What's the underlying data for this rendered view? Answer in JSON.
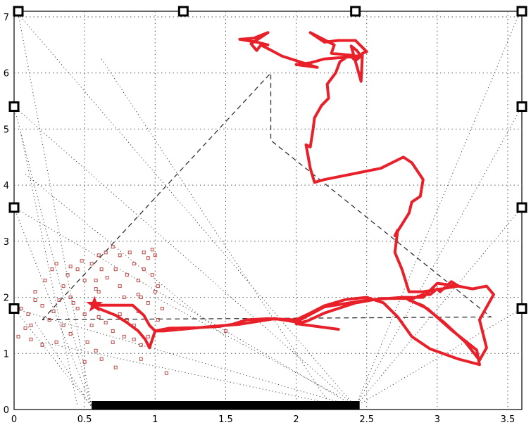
{
  "chart_data": {
    "type": "line",
    "xlim": [
      0,
      3.6
    ],
    "ylim": [
      0,
      7.1
    ],
    "grid": true,
    "x_ticks": [
      {
        "value": 0,
        "label": "0"
      },
      {
        "value": 0.5,
        "label": "0.5"
      },
      {
        "value": 1,
        "label": "1"
      },
      {
        "value": 1.5,
        "label": "1.5"
      },
      {
        "value": 2,
        "label": "2"
      },
      {
        "value": 2.5,
        "label": "2.5"
      },
      {
        "value": 3,
        "label": "3"
      },
      {
        "value": 3.5,
        "label": "3.5"
      }
    ],
    "y_ticks": [
      {
        "value": 0,
        "label": "0"
      },
      {
        "value": 1,
        "label": "1"
      },
      {
        "value": 2,
        "label": "2"
      },
      {
        "value": 3,
        "label": "3"
      },
      {
        "value": 4,
        "label": "4"
      },
      {
        "value": 5,
        "label": "5"
      },
      {
        "value": 6,
        "label": "6"
      },
      {
        "value": 7,
        "label": "7"
      }
    ],
    "colors": {
      "trajectory": "#e8202a",
      "particles": "#c04848",
      "markers": "#000000",
      "grid": "#555555",
      "background": "#ffffff"
    },
    "trajectory": [
      [
        2.3,
        1.43
      ],
      [
        2.0,
        1.53
      ],
      [
        2.08,
        1.58
      ],
      [
        2.2,
        1.72
      ],
      [
        2.42,
        1.9
      ],
      [
        2.6,
        1.98
      ],
      [
        2.78,
        1.98
      ],
      [
        2.93,
        1.8
      ],
      [
        3.1,
        1.42
      ],
      [
        3.28,
        1.06
      ],
      [
        3.3,
        0.8
      ],
      [
        3.15,
        0.9
      ],
      [
        2.95,
        1.08
      ],
      [
        2.82,
        1.3
      ],
      [
        2.72,
        1.65
      ],
      [
        2.62,
        1.9
      ],
      [
        2.5,
        2.0
      ],
      [
        2.35,
        1.96
      ],
      [
        2.2,
        1.85
      ],
      [
        2.1,
        1.72
      ],
      [
        2.0,
        1.6
      ],
      [
        1.8,
        1.62
      ],
      [
        1.65,
        1.6
      ],
      [
        1.55,
        1.52
      ],
      [
        1.45,
        1.48
      ],
      [
        1.3,
        1.46
      ],
      [
        1.1,
        1.45
      ],
      [
        1.0,
        1.4
      ],
      [
        0.96,
        1.1
      ],
      [
        0.93,
        1.25
      ],
      [
        0.88,
        1.4
      ],
      [
        0.8,
        1.55
      ],
      [
        0.72,
        1.68
      ],
      [
        0.6,
        1.8
      ],
      [
        0.56,
        1.86
      ],
      [
        0.7,
        1.86
      ],
      [
        0.84,
        1.86
      ],
      [
        0.92,
        1.68
      ],
      [
        0.96,
        1.5
      ],
      [
        1.0,
        1.4
      ],
      [
        1.06,
        1.4
      ],
      [
        1.4,
        1.48
      ],
      [
        1.6,
        1.52
      ],
      [
        1.85,
        1.62
      ],
      [
        2.0,
        1.56
      ],
      [
        2.2,
        1.83
      ],
      [
        2.5,
        1.95
      ],
      [
        2.75,
        2.0
      ],
      [
        2.9,
        2.0
      ],
      [
        3.0,
        2.25
      ],
      [
        3.15,
        2.2
      ],
      [
        3.25,
        2.15
      ],
      [
        3.35,
        2.2
      ],
      [
        3.4,
        2.05
      ],
      [
        3.3,
        1.6
      ],
      [
        3.35,
        1.1
      ],
      [
        3.3,
        0.88
      ],
      [
        3.2,
        1.2
      ],
      [
        3.05,
        1.55
      ],
      [
        2.9,
        1.85
      ],
      [
        2.8,
        1.95
      ],
      [
        2.9,
        2.05
      ],
      [
        2.95,
        2.05
      ],
      [
        3.0,
        2.15
      ],
      [
        3.02,
        2.1
      ],
      [
        3.1,
        2.28
      ],
      [
        3.15,
        2.2
      ],
      [
        2.9,
        2.1
      ],
      [
        2.8,
        2.1
      ],
      [
        2.75,
        2.5
      ],
      [
        2.7,
        2.8
      ],
      [
        2.72,
        3.2
      ],
      [
        2.7,
        3.1
      ],
      [
        2.75,
        3.3
      ],
      [
        2.8,
        3.5
      ],
      [
        2.82,
        3.7
      ],
      [
        2.88,
        3.8
      ],
      [
        2.9,
        4.1
      ],
      [
        2.82,
        4.4
      ],
      [
        2.76,
        4.5
      ],
      [
        2.6,
        4.3
      ],
      [
        2.2,
        4.1
      ],
      [
        2.13,
        4.05
      ],
      [
        2.1,
        4.3
      ],
      [
        2.07,
        4.72
      ],
      [
        2.1,
        4.68
      ],
      [
        2.12,
        5.0
      ],
      [
        2.13,
        5.2
      ],
      [
        2.18,
        5.42
      ],
      [
        2.23,
        5.55
      ],
      [
        2.22,
        5.8
      ],
      [
        2.28,
        6.0
      ],
      [
        2.31,
        6.2
      ],
      [
        2.38,
        6.32
      ],
      [
        2.42,
        6.22
      ],
      [
        2.46,
        6.3
      ],
      [
        2.43,
        6.4
      ],
      [
        2.39,
        6.48
      ],
      [
        2.46,
        5.85
      ],
      [
        2.47,
        6.35
      ],
      [
        2.5,
        6.38
      ],
      [
        2.42,
        6.58
      ],
      [
        2.3,
        6.58
      ],
      [
        2.2,
        6.55
      ],
      [
        2.1,
        6.72
      ],
      [
        2.27,
        6.5
      ],
      [
        2.25,
        6.35
      ],
      [
        2.45,
        6.3
      ],
      [
        2.2,
        6.25
      ],
      [
        2.1,
        6.18
      ],
      [
        2.0,
        6.15
      ],
      [
        2.15,
        6.1
      ],
      [
        1.9,
        6.3
      ],
      [
        1.75,
        6.5
      ],
      [
        1.72,
        6.4
      ],
      [
        1.68,
        6.52
      ],
      [
        1.8,
        6.72
      ],
      [
        1.7,
        6.62
      ],
      [
        1.6,
        6.6
      ],
      [
        1.72,
        6.55
      ],
      [
        1.8,
        6.5
      ]
    ],
    "start_marker": [
      0.57,
      1.87
    ],
    "dashed_path": [
      [
        0.2,
        1.6
      ],
      [
        1.82,
        6.0
      ],
      [
        1.82,
        4.8
      ],
      [
        3.38,
        1.65
      ],
      [
        0.2,
        1.6
      ]
    ],
    "particles": [
      [
        0.05,
        1.8
      ],
      [
        0.1,
        1.7
      ],
      [
        0.12,
        1.5
      ],
      [
        0.03,
        1.3
      ],
      [
        0.15,
        1.95
      ],
      [
        0.2,
        1.85
      ],
      [
        0.25,
        1.6
      ],
      [
        0.28,
        1.75
      ],
      [
        0.32,
        1.95
      ],
      [
        0.35,
        2.2
      ],
      [
        0.38,
        2.4
      ],
      [
        0.3,
        2.6
      ],
      [
        0.45,
        2.5
      ],
      [
        0.5,
        2.3
      ],
      [
        0.48,
        2.65
      ],
      [
        0.55,
        2.6
      ],
      [
        0.58,
        2.3
      ],
      [
        0.6,
        2.1
      ],
      [
        0.62,
        2.5
      ],
      [
        0.65,
        2.8
      ],
      [
        0.7,
        2.9
      ],
      [
        0.72,
        2.5
      ],
      [
        0.75,
        2.2
      ],
      [
        0.78,
        2.0
      ],
      [
        0.8,
        2.4
      ],
      [
        0.85,
        2.6
      ],
      [
        0.88,
        2.3
      ],
      [
        0.9,
        2.0
      ],
      [
        0.92,
        2.5
      ],
      [
        0.95,
        2.7
      ],
      [
        0.98,
        2.4
      ],
      [
        1.0,
        2.1
      ],
      [
        0.95,
        1.9
      ],
      [
        0.88,
        1.75
      ],
      [
        0.85,
        1.5
      ],
      [
        0.8,
        1.6
      ],
      [
        0.75,
        1.7
      ],
      [
        0.7,
        1.4
      ],
      [
        0.65,
        1.55
      ],
      [
        0.6,
        1.65
      ],
      [
        0.55,
        1.5
      ],
      [
        0.5,
        1.7
      ],
      [
        0.45,
        1.8
      ],
      [
        0.42,
        1.9
      ],
      [
        0.4,
        2.0
      ],
      [
        0.52,
        1.2
      ],
      [
        0.58,
        1.05
      ],
      [
        0.62,
        0.9
      ],
      [
        0.7,
        1.2
      ],
      [
        0.78,
        1.3
      ],
      [
        0.85,
        1.25
      ],
      [
        0.9,
        1.15
      ],
      [
        0.95,
        1.3
      ],
      [
        1.02,
        1.6
      ],
      [
        1.05,
        1.8
      ],
      [
        0.6,
        2.75
      ],
      [
        0.75,
        2.75
      ],
      [
        0.82,
        2.8
      ],
      [
        0.92,
        2.8
      ],
      [
        1.0,
        2.75
      ],
      [
        0.98,
        2.85
      ],
      [
        0.15,
        2.1
      ],
      [
        0.22,
        2.3
      ],
      [
        0.35,
        1.5
      ],
      [
        0.4,
        1.35
      ],
      [
        0.3,
        1.2
      ],
      [
        0.2,
        1.15
      ],
      [
        0.12,
        1.25
      ],
      [
        0.08,
        1.45
      ],
      [
        0.5,
        0.85
      ],
      [
        1.08,
        0.65
      ],
      [
        0.72,
        0.75
      ],
      [
        0.9,
        0.9
      ],
      [
        0.58,
        2.15
      ],
      [
        0.66,
        2.35
      ],
      [
        0.88,
        2.05
      ],
      [
        1.02,
        2.2
      ],
      [
        0.4,
        2.55
      ],
      [
        0.27,
        2.5
      ],
      [
        1.5,
        1.4
      ]
    ],
    "square_markers": [
      [
        0.03,
        7.1
      ],
      [
        1.2,
        7.1
      ],
      [
        2.42,
        7.1
      ],
      [
        3.6,
        7.1
      ],
      [
        0.0,
        5.4
      ],
      [
        3.6,
        5.4
      ],
      [
        0.0,
        3.6
      ],
      [
        3.6,
        3.6
      ],
      [
        0.0,
        1.8
      ],
      [
        3.6,
        1.8
      ]
    ],
    "bar_segment": [
      0.55,
      2.45
    ],
    "dotted_rays": [
      [
        [
          0.03,
          7.05
        ],
        [
          0.55,
          0.05
        ]
      ],
      [
        [
          0.03,
          7.05
        ],
        [
          2.42,
          0.05
        ]
      ],
      [
        [
          0.0,
          5.4
        ],
        [
          2.42,
          0.05
        ]
      ],
      [
        [
          0.0,
          5.4
        ],
        [
          0.55,
          0.05
        ]
      ],
      [
        [
          0.0,
          3.6
        ],
        [
          2.42,
          0.05
        ]
      ],
      [
        [
          0.0,
          3.6
        ],
        [
          0.55,
          0.05
        ]
      ],
      [
        [
          0.0,
          1.8
        ],
        [
          2.42,
          0.05
        ]
      ],
      [
        [
          0.0,
          1.8
        ],
        [
          0.55,
          0.05
        ]
      ],
      [
        [
          3.58,
          7.05
        ],
        [
          2.42,
          0.05
        ]
      ],
      [
        [
          3.6,
          5.4
        ],
        [
          2.42,
          0.05
        ]
      ],
      [
        [
          3.6,
          3.6
        ],
        [
          2.42,
          0.05
        ]
      ],
      [
        [
          3.6,
          1.8
        ],
        [
          2.42,
          0.05
        ]
      ],
      [
        [
          0.62,
          6.25
        ],
        [
          2.25,
          0.05
        ]
      ],
      [
        [
          0.15,
          1.55
        ],
        [
          0.55,
          0.05
        ]
      ],
      [
        [
          0.2,
          1.2
        ],
        [
          2.35,
          0.05
        ]
      ],
      [
        [
          1.0,
          2.0
        ],
        [
          2.3,
          0.25
        ]
      ],
      [
        [
          0.05,
          4.9
        ],
        [
          0.45,
          0.05
        ]
      ],
      [
        [
          0.08,
          4.2
        ],
        [
          1.5,
          1.3
        ]
      ]
    ]
  }
}
